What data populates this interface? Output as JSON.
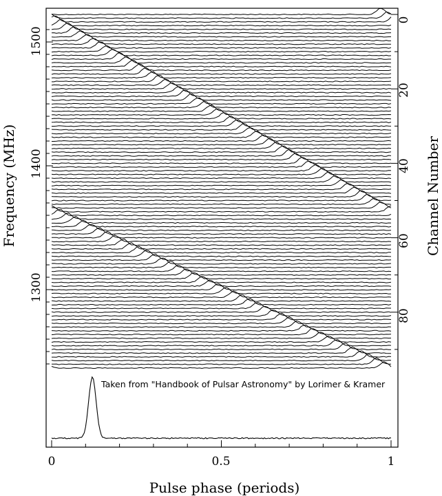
{
  "chart_data": {
    "type": "line",
    "title": "",
    "xlabel": "Pulse phase (periods)",
    "ylabel_left": "Frequency (MHz)",
    "ylabel_right": "Channel Number",
    "annotation": "Taken from \"Handbook of Pulsar Astronomy\" by Lorimer & Kramer",
    "xlim": [
      0,
      1
    ],
    "x_ticks": [
      "0",
      "0.5",
      "1"
    ],
    "left_ticks": [
      "1500",
      "1400",
      "1300"
    ],
    "right_ticks": [
      "0",
      "20",
      "40",
      "60",
      "80"
    ],
    "channels": 96,
    "channel_range": [
      0,
      95
    ],
    "frequency_range_mhz": [
      1517,
      1232
    ],
    "pulse": {
      "integrated_profile_peak_phase": 0.12,
      "channel_0_peak_phase": 0.97,
      "dispersion_wraps_at_channel": 53,
      "channel_53_peak_phase": 0.0,
      "channel_95_peak_phase": 0.98
    }
  },
  "colors": {
    "line": "#000000",
    "background": "#ffffff"
  }
}
